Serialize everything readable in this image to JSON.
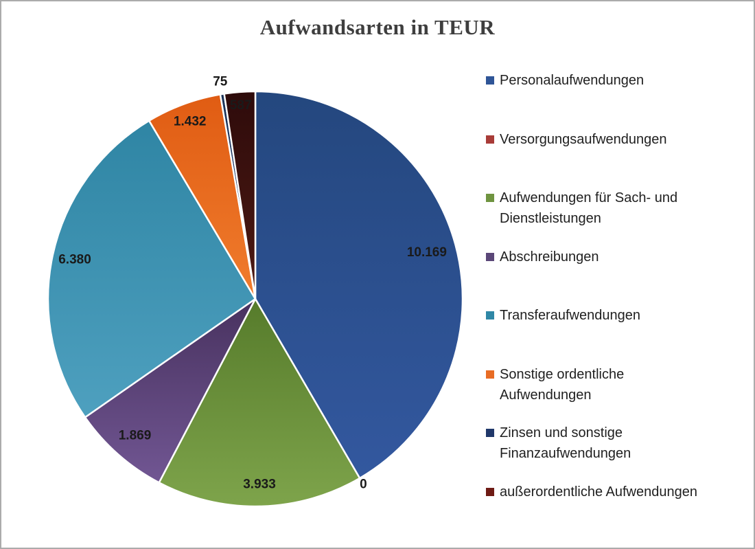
{
  "title": "Aufwandsarten in TEUR",
  "chart_data": {
    "type": "pie",
    "title": "Aufwandsarten in TEUR",
    "legend_position": "right",
    "start_angle_deg": 0,
    "direction": "clockwise",
    "series": [
      {
        "name": "Personalaufwendungen",
        "legend_lines": [
          "Personalaufwendungen"
        ],
        "value": 10169,
        "label": "10.169",
        "label_inside": true,
        "label_r": 0.857,
        "color": "#2F5597",
        "gradient": [
          "#24477E",
          "#33589F"
        ]
      },
      {
        "name": "Versorgungsaufwendungen",
        "legend_lines": [
          "Versorgungsaufwendungen"
        ],
        "value": 0,
        "label": "0",
        "label_inside": false,
        "label_r": 1.035,
        "color": "#A83C38",
        "gradient": [
          "#9E3A37",
          "#B5524E"
        ]
      },
      {
        "name": "Aufwendungen für Sach- und Dienstleistungen",
        "legend_lines": [
          "Aufwendungen für Sach- und",
          "Dienstleistungen"
        ],
        "value": 3933,
        "label": "3.933",
        "label_inside": true,
        "label_r": 0.894,
        "color": "#6F9440",
        "gradient": [
          "#567B2B",
          "#7EA44B"
        ]
      },
      {
        "name": "Abschreibungen",
        "legend_lines": [
          "Abschreibungen"
        ],
        "value": 1869,
        "label": "1.869",
        "label_inside": true,
        "label_r": 0.878,
        "color": "#5B4778",
        "gradient": [
          "#48325F",
          "#715693"
        ]
      },
      {
        "name": "Transferaufwendungen",
        "legend_lines": [
          "Transferaufwendungen"
        ],
        "value": 6380,
        "label": "6.380",
        "label_inside": true,
        "label_r": 0.891,
        "color": "#2F87A6",
        "gradient": [
          "#2F85A4",
          "#4EA0BF"
        ]
      },
      {
        "name": "Sonstige ordentliche Aufwendungen",
        "legend_lines": [
          "Sonstige ordentliche",
          "Aufwendungen"
        ],
        "value": 1432,
        "label": "1.432",
        "label_inside": true,
        "label_r": 0.91,
        "color": "#E86C24",
        "gradient": [
          "#E05C13",
          "#F07C2D"
        ]
      },
      {
        "name": "Zinsen und sonstige Finanzaufwendungen",
        "legend_lines": [
          "Zinsen und sonstige",
          "Finanzaufwendungen"
        ],
        "value": 75,
        "label": "75",
        "label_inside": false,
        "label_r": 1.06,
        "color": "#20386A",
        "gradient": [
          "#1B3257",
          "#27497F"
        ]
      },
      {
        "name": "außerordentliche Aufwendungen",
        "legend_lines": [
          "außerordentliche Aufwendungen"
        ],
        "value": 587,
        "label": "587",
        "label_inside": true,
        "label_r": 0.935,
        "color": "#6E1B15",
        "gradient": [
          "#2E0B0B",
          "#4E1A13"
        ]
      }
    ]
  },
  "colors": {
    "background": "#FFFFFF",
    "page_border": "#ABABAB",
    "title_text": "#3E3E3E",
    "data_label_text": "#1A1A1A",
    "legend_text": "#1F1F1F",
    "slice_separator": "#FFFFFF"
  }
}
